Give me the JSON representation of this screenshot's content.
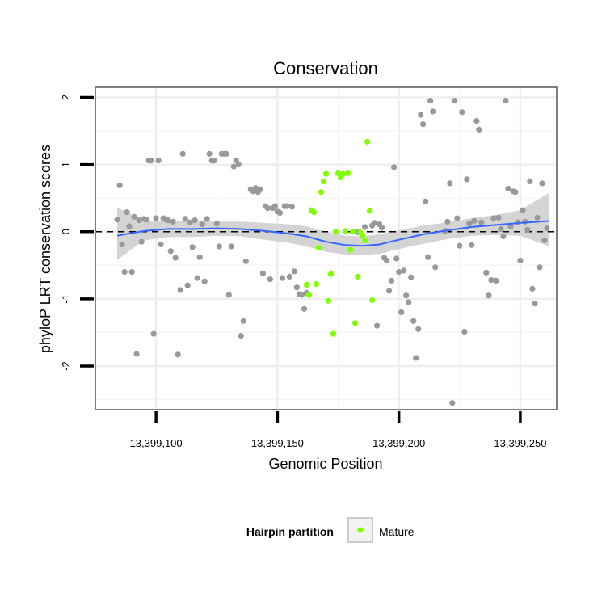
{
  "chart_data": {
    "type": "scatter",
    "title": "Conservation",
    "xlabel": "Genomic Position",
    "ylabel": "phyloP LRT conservation scores",
    "xlim": [
      13399075,
      13399265
    ],
    "ylim": [
      -2.65,
      2.15
    ],
    "xticks": [
      13399100,
      13399150,
      13399200,
      13399250
    ],
    "xtick_labels": [
      "13,399,100",
      "13,399,150",
      "13,399,200",
      "13,399,250"
    ],
    "yticks": [
      -2,
      -1,
      0,
      1,
      2
    ],
    "ytick_labels": [
      "-2",
      "-1",
      "0",
      "1",
      "2"
    ],
    "grid": true,
    "reference_line": {
      "y": 0,
      "style": "dashed"
    },
    "colors": {
      "other": "#999999",
      "mature": "#7fff00",
      "smooth": "#3366ff",
      "ribbon": "#cccccc"
    },
    "legend": {
      "title": "Hairpin partition",
      "position": "bottom",
      "entries": [
        {
          "label": "Mature",
          "color": "#7fff00"
        }
      ]
    },
    "series": [
      {
        "name": "Other",
        "points": [
          [
            13399084,
            0.18
          ],
          [
            13399085,
            0.69
          ],
          [
            13399086,
            -0.19
          ],
          [
            13399087,
            -0.6
          ],
          [
            13399088,
            0.29
          ],
          [
            13399089,
            0.08
          ],
          [
            13399090,
            -0.6
          ],
          [
            13399091,
            0.22
          ],
          [
            13399092,
            -1.82
          ],
          [
            13399093,
            0.17
          ],
          [
            13399094,
            -0.15
          ],
          [
            13399095,
            0.19
          ],
          [
            13399096,
            0.18
          ],
          [
            13399097,
            1.06
          ],
          [
            13399098,
            1.06
          ],
          [
            13399099,
            -1.52
          ],
          [
            13399100,
            0.2
          ],
          [
            13399101,
            1.06
          ],
          [
            13399102,
            -0.19
          ],
          [
            13399103,
            0.2
          ],
          [
            13399104,
            0.18
          ],
          [
            13399105,
            0.17
          ],
          [
            13399106,
            -0.29
          ],
          [
            13399107,
            0.15
          ],
          [
            13399108,
            -0.39
          ],
          [
            13399109,
            -1.83
          ],
          [
            13399110,
            -0.87
          ],
          [
            13399111,
            1.16
          ],
          [
            13399112,
            0.19
          ],
          [
            13399113,
            -0.8
          ],
          [
            13399114,
            0.14
          ],
          [
            13399115,
            -0.23
          ],
          [
            13399116,
            0.17
          ],
          [
            13399117,
            -0.69
          ],
          [
            13399118,
            -0.38
          ],
          [
            13399119,
            0.11
          ],
          [
            13399120,
            -0.74
          ],
          [
            13399121,
            0.19
          ],
          [
            13399122,
            1.16
          ],
          [
            13399123,
            1.06
          ],
          [
            13399124,
            1.06
          ],
          [
            13399125,
            0.12
          ],
          [
            13399126,
            -0.22
          ],
          [
            13399127,
            1.16
          ],
          [
            13399128,
            1.16
          ],
          [
            13399129,
            1.16
          ],
          [
            13399130,
            -0.94
          ],
          [
            13399131,
            -0.22
          ],
          [
            13399132,
            0.97
          ],
          [
            13399133,
            1.06
          ],
          [
            13399134,
            1.0
          ],
          [
            13399135,
            -1.55
          ],
          [
            13399136,
            -1.33
          ],
          [
            13399137,
            -0.44
          ],
          [
            13399139,
            0.63
          ],
          [
            13399140,
            0.6
          ],
          [
            13399141,
            0.65
          ],
          [
            13399142,
            0.59
          ],
          [
            13399143,
            0.63
          ],
          [
            13399144,
            -0.62
          ],
          [
            13399145,
            0.38
          ],
          [
            13399146,
            0.35
          ],
          [
            13399147,
            -0.71
          ],
          [
            13399148,
            0.35
          ],
          [
            13399149,
            0.38
          ],
          [
            13399150,
            0.3
          ],
          [
            13399151,
            0.28
          ],
          [
            13399152,
            -0.69
          ],
          [
            13399153,
            0.38
          ],
          [
            13399154,
            0.38
          ],
          [
            13399155,
            -0.67
          ],
          [
            13399156,
            0.37
          ],
          [
            13399157,
            -0.59
          ],
          [
            13399158,
            -0.83
          ],
          [
            13399159,
            -0.93
          ],
          [
            13399160,
            -0.94
          ],
          [
            13399161,
            -1.15
          ],
          [
            13399162,
            -0.91
          ],
          [
            13399183,
            -0.01
          ],
          [
            13399186,
            0.07
          ],
          [
            13399189,
            0.09
          ],
          [
            13399190,
            0.13
          ],
          [
            13399191,
            -1.4
          ],
          [
            13399192,
            0.11
          ],
          [
            13399193,
            0.06
          ],
          [
            13399194,
            -0.39
          ],
          [
            13399195,
            -0.43
          ],
          [
            13399196,
            -0.88
          ],
          [
            13399197,
            -0.73
          ],
          [
            13399198,
            0.96
          ],
          [
            13399199,
            -0.4
          ],
          [
            13399200,
            -0.6
          ],
          [
            13399201,
            -1.2
          ],
          [
            13399202,
            -0.58
          ],
          [
            13399203,
            -0.95
          ],
          [
            13399204,
            -1.05
          ],
          [
            13399205,
            -0.68
          ],
          [
            13399206,
            -1.33
          ],
          [
            13399207,
            -1.88
          ],
          [
            13399208,
            -1.45
          ],
          [
            13399209,
            1.74
          ],
          [
            13399210,
            1.6
          ],
          [
            13399211,
            0.45
          ],
          [
            13399212,
            -0.38
          ],
          [
            13399213,
            1.95
          ],
          [
            13399214,
            1.79
          ],
          [
            13399215,
            -0.53
          ],
          [
            13399219,
            0.01
          ],
          [
            13399220,
            0.15
          ],
          [
            13399221,
            0.72
          ],
          [
            13399222,
            -2.55
          ],
          [
            13399223,
            1.95
          ],
          [
            13399224,
            0.2
          ],
          [
            13399225,
            -0.21
          ],
          [
            13399226,
            1.78
          ],
          [
            13399227,
            -1.49
          ],
          [
            13399228,
            0.78
          ],
          [
            13399229,
            0.12
          ],
          [
            13399230,
            -0.2
          ],
          [
            13399231,
            0.16
          ],
          [
            13399232,
            1.65
          ],
          [
            13399233,
            1.52
          ],
          [
            13399234,
            0.14
          ],
          [
            13399236,
            -0.61
          ],
          [
            13399237,
            -0.95
          ],
          [
            13399238,
            -0.72
          ],
          [
            13399239,
            0.2
          ],
          [
            13399240,
            -0.73
          ],
          [
            13399241,
            0.21
          ],
          [
            13399242,
            0.04
          ],
          [
            13399243,
            -0.07
          ],
          [
            13399244,
            1.95
          ],
          [
            13399245,
            0.64
          ],
          [
            13399246,
            0.08
          ],
          [
            13399247,
            0.6
          ],
          [
            13399248,
            0.59
          ],
          [
            13399249,
            0.14
          ],
          [
            13399250,
            -0.43
          ],
          [
            13399251,
            0.32
          ],
          [
            13399252,
            0.15
          ],
          [
            13399253,
            0.03
          ],
          [
            13399254,
            0.75
          ],
          [
            13399255,
            -0.85
          ],
          [
            13399256,
            -1.07
          ],
          [
            13399257,
            0.21
          ],
          [
            13399258,
            -0.53
          ],
          [
            13399259,
            0.72
          ],
          [
            13399260,
            -0.13
          ],
          [
            13399261,
            0.05
          ]
        ]
      },
      {
        "name": "Mature",
        "points": [
          [
            13399162,
            -0.79
          ],
          [
            13399163,
            -0.94
          ],
          [
            13399164,
            0.32
          ],
          [
            13399165,
            0.29
          ],
          [
            13399166,
            -0.78
          ],
          [
            13399167,
            -0.24
          ],
          [
            13399168,
            0.59
          ],
          [
            13399169,
            0.75
          ],
          [
            13399170,
            0.86
          ],
          [
            13399171,
            -1.03
          ],
          [
            13399172,
            -0.63
          ],
          [
            13399173,
            -1.52
          ],
          [
            13399174,
            0.0
          ],
          [
            13399175,
            0.87
          ],
          [
            13399176,
            0.81
          ],
          [
            13399177,
            0.86
          ],
          [
            13399178,
            0.01
          ],
          [
            13399179,
            0.87
          ],
          [
            13399180,
            -0.27
          ],
          [
            13399181,
            0.0
          ],
          [
            13399182,
            -1.36
          ],
          [
            13399183,
            -0.67
          ],
          [
            13399184,
            -0.01
          ],
          [
            13399185,
            -0.06
          ],
          [
            13399186,
            -0.13
          ],
          [
            13399187,
            1.34
          ],
          [
            13399188,
            0.31
          ],
          [
            13399189,
            -1.02
          ]
        ]
      }
    ],
    "smooth": {
      "x": [
        13399084,
        13399095,
        13399105,
        13399115,
        13399125,
        13399135,
        13399145,
        13399155,
        13399162,
        13399170,
        13399178,
        13399185,
        13399192,
        13399200,
        13399210,
        13399220,
        13399230,
        13399240,
        13399250,
        13399262
      ],
      "y": [
        -0.06,
        0.01,
        0.04,
        0.04,
        0.05,
        0.04,
        0.01,
        -0.03,
        -0.07,
        -0.15,
        -0.2,
        -0.21,
        -0.19,
        -0.12,
        -0.04,
        0.02,
        0.07,
        0.1,
        0.13,
        0.16
      ],
      "ymin": [
        -0.42,
        -0.13,
        -0.08,
        -0.08,
        -0.06,
        -0.07,
        -0.12,
        -0.17,
        -0.22,
        -0.3,
        -0.34,
        -0.35,
        -0.33,
        -0.26,
        -0.18,
        -0.11,
        -0.06,
        -0.05,
        -0.06,
        -0.22
      ],
      "ymax": [
        0.36,
        0.17,
        0.16,
        0.16,
        0.15,
        0.15,
        0.13,
        0.11,
        0.08,
        0.0,
        -0.06,
        -0.07,
        -0.04,
        0.02,
        0.09,
        0.14,
        0.2,
        0.25,
        0.32,
        0.58
      ]
    }
  }
}
